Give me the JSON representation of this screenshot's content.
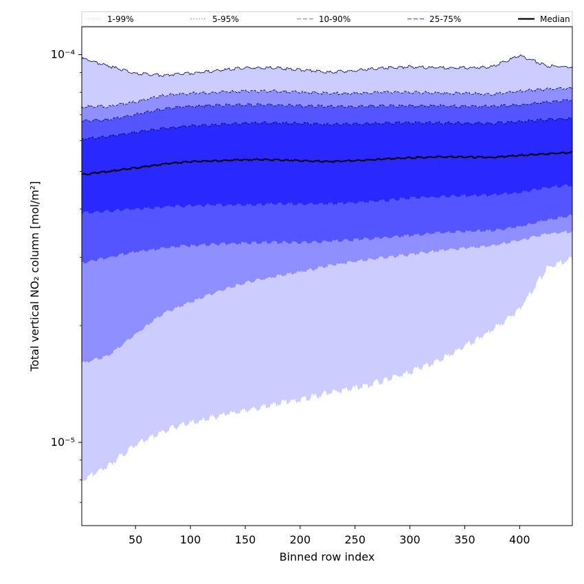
{
  "chart_data": {
    "type": "area",
    "title": "",
    "xlabel": "Binned row index",
    "ylabel": "Total vertical NO₂ column [mol/m²]",
    "xlim": [
      1,
      448
    ],
    "ylim": [
      6.1e-06,
      0.000118
    ],
    "yscale": "log",
    "x_ticks": [
      50,
      100,
      150,
      200,
      250,
      300,
      350,
      400
    ],
    "y_ticks": [
      {
        "value": 1e-05,
        "label": "10⁻⁵"
      },
      {
        "value": 0.0001,
        "label": "10⁻⁴"
      }
    ],
    "grid": false,
    "legend_position": "top (above plot, horizontal)",
    "x": [
      1,
      25,
      50,
      75,
      100,
      125,
      150,
      175,
      200,
      225,
      250,
      275,
      300,
      325,
      350,
      375,
      400,
      425,
      448
    ],
    "series": [
      {
        "name": "1-99%",
        "color": "#ccccff",
        "lower": [
          8e-06,
          8.7e-06,
          9.9e-06,
          1.07e-05,
          1.12e-05,
          1.17e-05,
          1.21e-05,
          1.25e-05,
          1.29e-05,
          1.34e-05,
          1.38e-05,
          1.44e-05,
          1.52e-05,
          1.62e-05,
          1.77e-05,
          1.95e-05,
          2.2e-05,
          2.82e-05,
          2.98e-05
        ],
        "upper": [
          9.8e-05,
          9.35e-05,
          8.95e-05,
          8.85e-05,
          8.95e-05,
          9.1e-05,
          9.25e-05,
          9.25e-05,
          9.15e-05,
          9e-05,
          9.1e-05,
          9.25e-05,
          9.3e-05,
          9.25e-05,
          9.25e-05,
          9.3e-05,
          9.95e-05,
          9.35e-05,
          9.3e-05
        ]
      },
      {
        "name": "5-95%",
        "color": "#8f8fff",
        "lower": [
          1.6e-05,
          1.67e-05,
          1.9e-05,
          2.15e-05,
          2.3e-05,
          2.45e-05,
          2.58e-05,
          2.67e-05,
          2.75e-05,
          2.85e-05,
          2.93e-05,
          3e-05,
          3.05e-05,
          3.12e-05,
          3.17e-05,
          3.22e-05,
          3.32e-05,
          3.45e-05,
          3.5e-05
        ],
        "upper": [
          7.35e-05,
          7.35e-05,
          7.55e-05,
          7.85e-05,
          7.95e-05,
          8e-05,
          8.05e-05,
          8.05e-05,
          8e-05,
          7.95e-05,
          7.95e-05,
          8e-05,
          8e-05,
          7.95e-05,
          7.95e-05,
          7.9e-05,
          8.05e-05,
          8.15e-05,
          8.2e-05
        ]
      },
      {
        "name": "10-90%",
        "color": "#5555ff",
        "lower": [
          2.9e-05,
          3e-05,
          3.1e-05,
          3.17e-05,
          3.22e-05,
          3.25e-05,
          3.27e-05,
          3.28e-05,
          3.28e-05,
          3.3e-05,
          3.33e-05,
          3.37e-05,
          3.42e-05,
          3.47e-05,
          3.5e-05,
          3.52e-05,
          3.6e-05,
          3.75e-05,
          3.85e-05
        ],
        "upper": [
          6.75e-05,
          6.8e-05,
          7e-05,
          7.25e-05,
          7.35e-05,
          7.4e-05,
          7.42e-05,
          7.42e-05,
          7.38e-05,
          7.35e-05,
          7.35e-05,
          7.37e-05,
          7.38e-05,
          7.38e-05,
          7.35e-05,
          7.35e-05,
          7.42e-05,
          7.55e-05,
          7.65e-05
        ]
      },
      {
        "name": "25-75%",
        "color": "#2828ff",
        "lower": [
          3.9e-05,
          3.95e-05,
          4e-05,
          4.05e-05,
          4.08e-05,
          4.1e-05,
          4.1e-05,
          4.12e-05,
          4.12e-05,
          4.13e-05,
          4.15e-05,
          4.2e-05,
          4.27e-05,
          4.3e-05,
          4.33e-05,
          4.35e-05,
          4.4e-05,
          4.55e-05,
          4.6e-05
        ],
        "upper": [
          6.05e-05,
          6.15e-05,
          6.3e-05,
          6.45e-05,
          6.55e-05,
          6.6e-05,
          6.65e-05,
          6.67e-05,
          6.65e-05,
          6.6e-05,
          6.62e-05,
          6.65e-05,
          6.67e-05,
          6.67e-05,
          6.65e-05,
          6.65e-05,
          6.72e-05,
          6.8e-05,
          6.85e-05
        ]
      }
    ],
    "median": {
      "name": "Median",
      "color": "#000000",
      "values": [
        4.9e-05,
        5e-05,
        5.1e-05,
        5.22e-05,
        5.3e-05,
        5.33e-05,
        5.36e-05,
        5.36e-05,
        5.33e-05,
        5.3e-05,
        5.33e-05,
        5.38e-05,
        5.42e-05,
        5.45e-05,
        5.45e-05,
        5.43e-05,
        5.5e-05,
        5.55e-05,
        5.6e-05
      ]
    },
    "legend": [
      {
        "label": "1-99%",
        "color": "#dcdcff",
        "style": "dotted"
      },
      {
        "label": "5-95%",
        "color": "#a0a0ff",
        "style": "dotted"
      },
      {
        "label": "10-90%",
        "color": "#8888ff",
        "style": "dashed"
      },
      {
        "label": "25-75%",
        "color": "#5555ff",
        "style": "dashed"
      },
      {
        "label": "Median",
        "color": "#000000",
        "style": "solid"
      }
    ]
  }
}
